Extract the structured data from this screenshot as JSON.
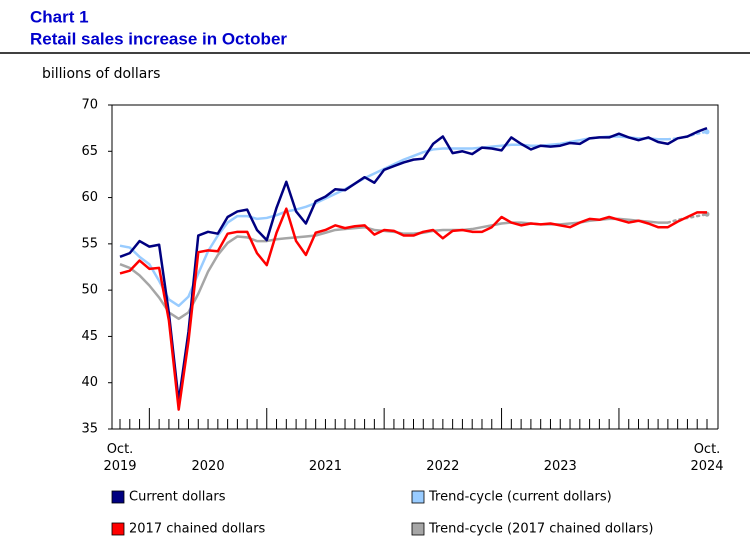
{
  "chart_data": {
    "type": "line",
    "chart_label": "Chart 1",
    "title": "Retail sales increase in October",
    "y_label": "billions of dollars",
    "categories": [
      "Oct. 2019",
      null,
      null,
      null,
      null,
      null,
      null,
      null,
      null,
      "2020",
      null,
      null,
      null,
      null,
      null,
      null,
      null,
      null,
      null,
      null,
      null,
      "2021",
      null,
      null,
      null,
      null,
      null,
      null,
      null,
      null,
      null,
      null,
      null,
      "2022",
      null,
      null,
      null,
      null,
      null,
      null,
      null,
      null,
      null,
      null,
      null,
      "2023",
      null,
      null,
      null,
      null,
      null,
      null,
      null,
      null,
      null,
      null,
      null,
      null,
      null,
      null,
      "Oct. 2024"
    ],
    "ylim": [
      35,
      70
    ],
    "yticks": [
      35,
      40,
      45,
      50,
      55,
      60,
      65,
      70
    ],
    "series": [
      {
        "name": "Current dollars",
        "color": "#000080",
        "values": [
          53.6,
          54.0,
          55.3,
          54.7,
          54.9,
          47.5,
          38.0,
          45.5,
          55.9,
          56.3,
          56.1,
          57.9,
          58.5,
          58.7,
          56.5,
          55.4,
          58.9,
          61.7,
          58.5,
          57.2,
          59.6,
          60.1,
          60.9,
          60.8,
          61.5,
          62.2,
          61.6,
          63.0,
          63.4,
          63.8,
          64.1,
          64.2,
          65.8,
          66.6,
          64.8,
          65.0,
          64.7,
          65.4,
          65.3,
          65.1,
          66.5,
          65.8,
          65.2,
          65.6,
          65.5,
          65.6,
          65.9,
          65.8,
          66.4,
          66.5,
          66.5,
          66.9,
          66.5,
          66.2,
          66.5,
          66.0,
          65.8,
          66.4,
          66.6,
          67.1,
          67.5
        ]
      },
      {
        "name": "Trend-cycle (current dollars)",
        "color": "#99ccff",
        "values": [
          54.8,
          54.6,
          53.6,
          52.8,
          51.0,
          49.0,
          48.3,
          49.3,
          51.8,
          54.2,
          55.9,
          57.3,
          58.0,
          58.0,
          57.7,
          57.8,
          58.1,
          58.5,
          58.7,
          59.0,
          59.4,
          59.9,
          60.4,
          60.9,
          61.5,
          62.1,
          62.6,
          63.1,
          63.6,
          64.1,
          64.5,
          64.9,
          65.2,
          65.3,
          65.3,
          65.3,
          65.3,
          65.4,
          65.5,
          65.6,
          65.7,
          65.7,
          65.6,
          65.6,
          65.7,
          65.8,
          66.0,
          66.2,
          66.4,
          66.5,
          66.6,
          66.6,
          66.5,
          66.4,
          66.4,
          66.3,
          66.3,
          66.4,
          66.6,
          66.9,
          67.1
        ]
      },
      {
        "name": "2017 chained dollars",
        "color": "#ff0000",
        "values": [
          51.8,
          52.1,
          53.2,
          52.3,
          52.4,
          46.7,
          37.1,
          44.5,
          54.1,
          54.3,
          54.2,
          56.1,
          56.3,
          56.3,
          54.0,
          52.7,
          56.2,
          58.8,
          55.3,
          53.8,
          56.2,
          56.5,
          57.0,
          56.7,
          56.9,
          57.0,
          56.0,
          56.5,
          56.4,
          55.9,
          55.9,
          56.3,
          56.5,
          55.6,
          56.4,
          56.5,
          56.3,
          56.3,
          56.8,
          57.9,
          57.3,
          57.0,
          57.2,
          57.1,
          57.2,
          57.0,
          56.8,
          57.3,
          57.7,
          57.6,
          57.9,
          57.6,
          57.3,
          57.5,
          57.2,
          56.8,
          56.8,
          57.4,
          57.9,
          58.4,
          58.4
        ]
      },
      {
        "name": "Trend-cycle (2017 chained dollars)",
        "color": "#a6a6a6",
        "values": [
          52.8,
          52.4,
          51.6,
          50.5,
          49.2,
          47.6,
          46.9,
          47.6,
          49.6,
          52.0,
          53.8,
          55.1,
          55.8,
          55.7,
          55.3,
          55.3,
          55.5,
          55.6,
          55.7,
          55.8,
          55.9,
          56.2,
          56.5,
          56.6,
          56.7,
          56.8,
          56.5,
          56.4,
          56.3,
          56.1,
          56.1,
          56.2,
          56.4,
          56.5,
          56.5,
          56.5,
          56.6,
          56.8,
          57.0,
          57.2,
          57.3,
          57.3,
          57.2,
          57.1,
          57.1,
          57.1,
          57.2,
          57.3,
          57.5,
          57.6,
          57.7,
          57.7,
          57.6,
          57.5,
          57.4,
          57.3,
          57.3,
          57.6,
          57.8,
          58.0,
          58.2
        ]
      }
    ]
  }
}
